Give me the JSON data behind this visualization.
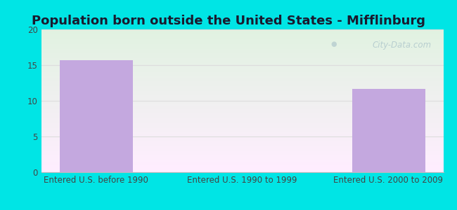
{
  "title": "Population born outside the United States - Mifflinburg",
  "categories": [
    "Entered U.S. before 1990",
    "Entered U.S. 1990 to 1999",
    "Entered U.S. 2000 to 2009"
  ],
  "values": [
    15.7,
    0,
    11.7
  ],
  "bar_color": "#c4a8df",
  "ylim": [
    0,
    20
  ],
  "yticks": [
    0,
    5,
    10,
    15,
    20
  ],
  "outer_bg": "#00e5e5",
  "title_fontsize": 13,
  "tick_fontsize": 8.5,
  "watermark": "City-Data.com",
  "title_color": "#1a1a2e",
  "tick_color": "#444444",
  "grid_color": "#dddddd",
  "bar_width": 0.5
}
